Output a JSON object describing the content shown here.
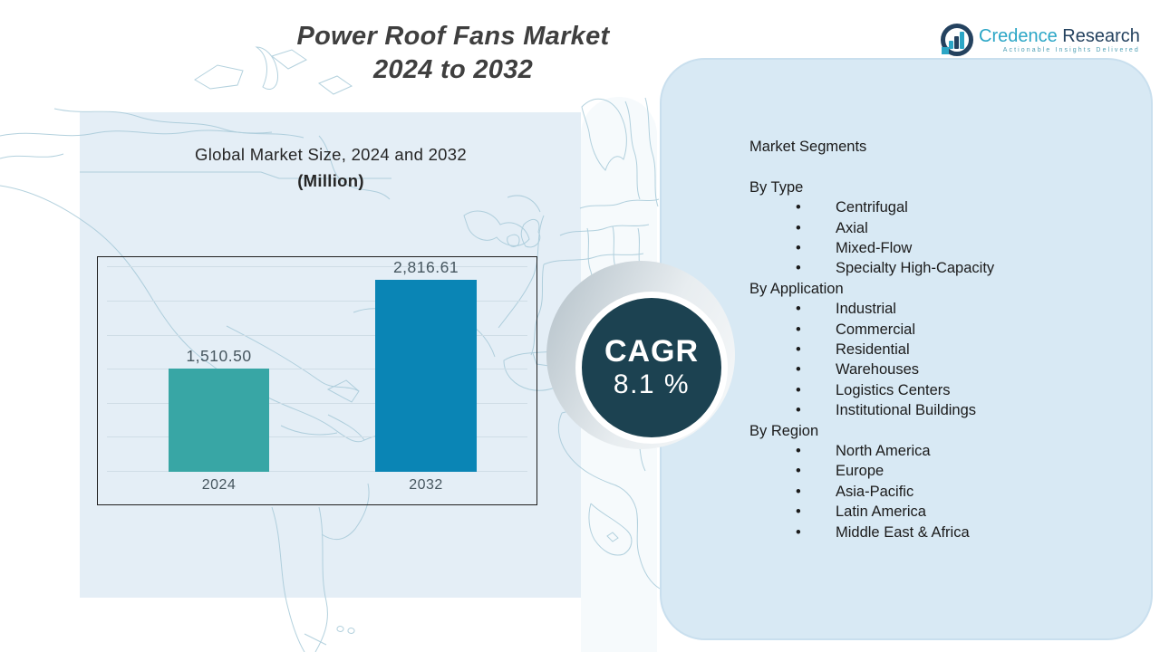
{
  "title": {
    "line1": "Power Roof Fans Market",
    "line2": "2024 to 2032"
  },
  "logo": {
    "brand_primary": "Credence",
    "brand_secondary": "Research",
    "tagline": "Actionable Insights Delivered",
    "icon": "bar-chart-in-circle"
  },
  "badge": {
    "label": "CAGR",
    "value": "8.1 %"
  },
  "chart_data": {
    "type": "bar",
    "title": "Global Market Size, 2024 and 2032",
    "subtitle": "(Million)",
    "categories": [
      "2024",
      "2032"
    ],
    "values": [
      1510.5,
      2816.61
    ],
    "value_labels": [
      "1,510.50",
      "2,816.61"
    ],
    "bar_colors": [
      "#38a6a5",
      "#0a85b5"
    ],
    "ylim": [
      0,
      3000
    ],
    "gridline_step": 500,
    "grid": true,
    "legend": false
  },
  "segments": {
    "heading": "Market Segments",
    "groups": [
      {
        "label": "By Type",
        "items": [
          "Centrifugal",
          "Axial",
          "Mixed-Flow",
          "Specialty High-Capacity"
        ]
      },
      {
        "label": "By Application",
        "items": [
          "Industrial",
          "Commercial",
          "Residential",
          "Warehouses",
          "Logistics Centers",
          "Institutional Buildings"
        ]
      },
      {
        "label": "By Region",
        "items": [
          "North America",
          "Europe",
          "Asia-Pacific",
          "Latin America",
          "Middle East & Africa"
        ]
      }
    ]
  },
  "colors": {
    "brand_teal": "#2ba6c6",
    "brand_navy": "#24425f",
    "badge_background": "#1c4251",
    "bar_2024": "#38a6a5",
    "bar_2032": "#0a85b5",
    "left_panel": "#e4eef6",
    "right_panel": "#d8e9f4"
  }
}
